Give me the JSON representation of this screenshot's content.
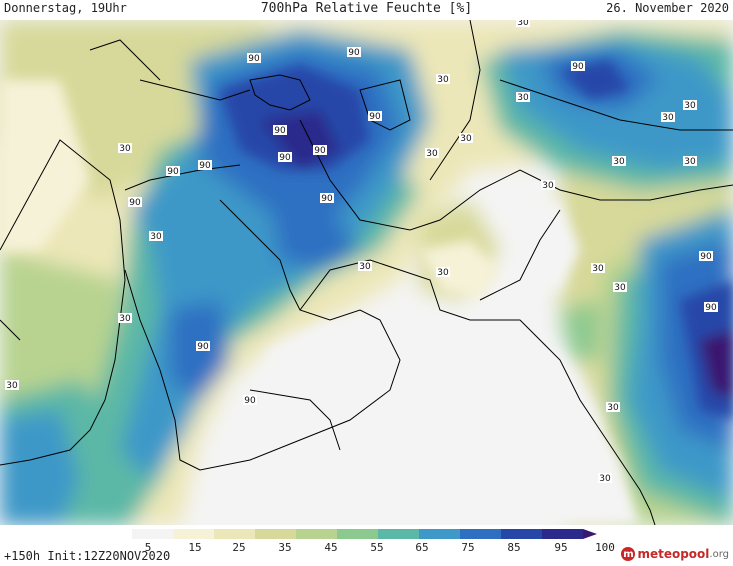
{
  "header": {
    "left": "Donnerstag, 19Uhr",
    "center": "700hPa Relative Feuchte [%]",
    "right": "26. November 2020"
  },
  "footer": {
    "init": "+150h  Init:12Z20NOV2020",
    "logo_name": "meteopool",
    "logo_tld": ".org"
  },
  "legend": {
    "ticks": [
      "5",
      "15",
      "25",
      "35",
      "45",
      "55",
      "65",
      "75",
      "85",
      "95",
      "100"
    ],
    "colors": [
      "#f4f4f4",
      "#f6f2d8",
      "#ece7b8",
      "#d7d99a",
      "#b7d38f",
      "#8cc98f",
      "#5cb8a6",
      "#3e98c8",
      "#2f6fc2",
      "#2747a8",
      "#2b2a8c",
      "#3b1770"
    ]
  },
  "contour_labels": [
    "90",
    "90",
    "90",
    "90",
    "90",
    "90",
    "90",
    "90",
    "90",
    "90",
    "90",
    "90",
    "90",
    "90",
    "90",
    "30",
    "30",
    "30",
    "30",
    "30",
    "30",
    "30",
    "30",
    "30",
    "30",
    "30",
    "30",
    "30",
    "30",
    "30",
    "30",
    "30",
    "30",
    "30",
    "30"
  ],
  "colors": {
    "coast": "#000000",
    "dry": "#f4f4f4",
    "moist": "#2747a8"
  }
}
